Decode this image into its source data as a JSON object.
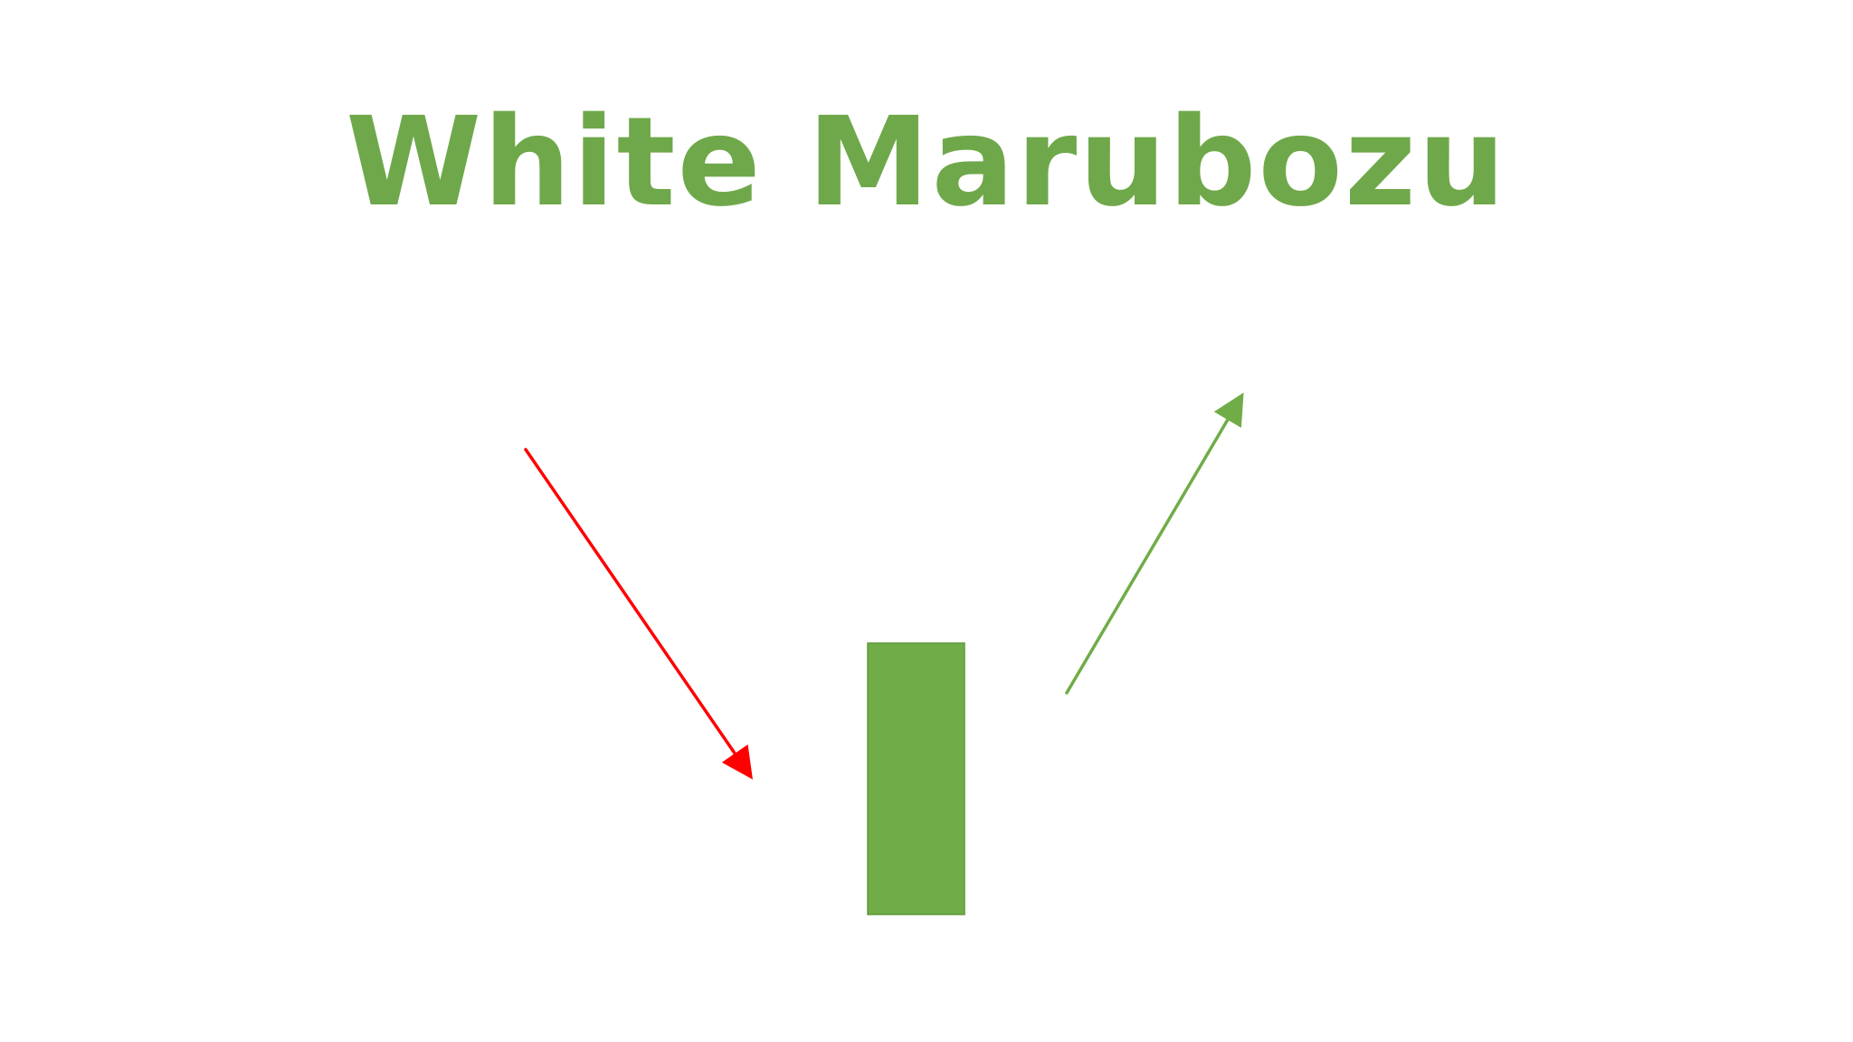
{
  "title": "White Marubozu",
  "colors": {
    "title": "#6fa84a",
    "candle_body": "#70ac47",
    "down_arrow": "#ff0000",
    "up_arrow": "#70ac47",
    "background": "#ffffff"
  },
  "elements": {
    "down_arrow": {
      "direction": "down-right",
      "meaning": "downtrend"
    },
    "candle": {
      "type": "bullish-marubozu"
    },
    "up_arrow": {
      "direction": "up-right",
      "meaning": "uptrend"
    }
  }
}
